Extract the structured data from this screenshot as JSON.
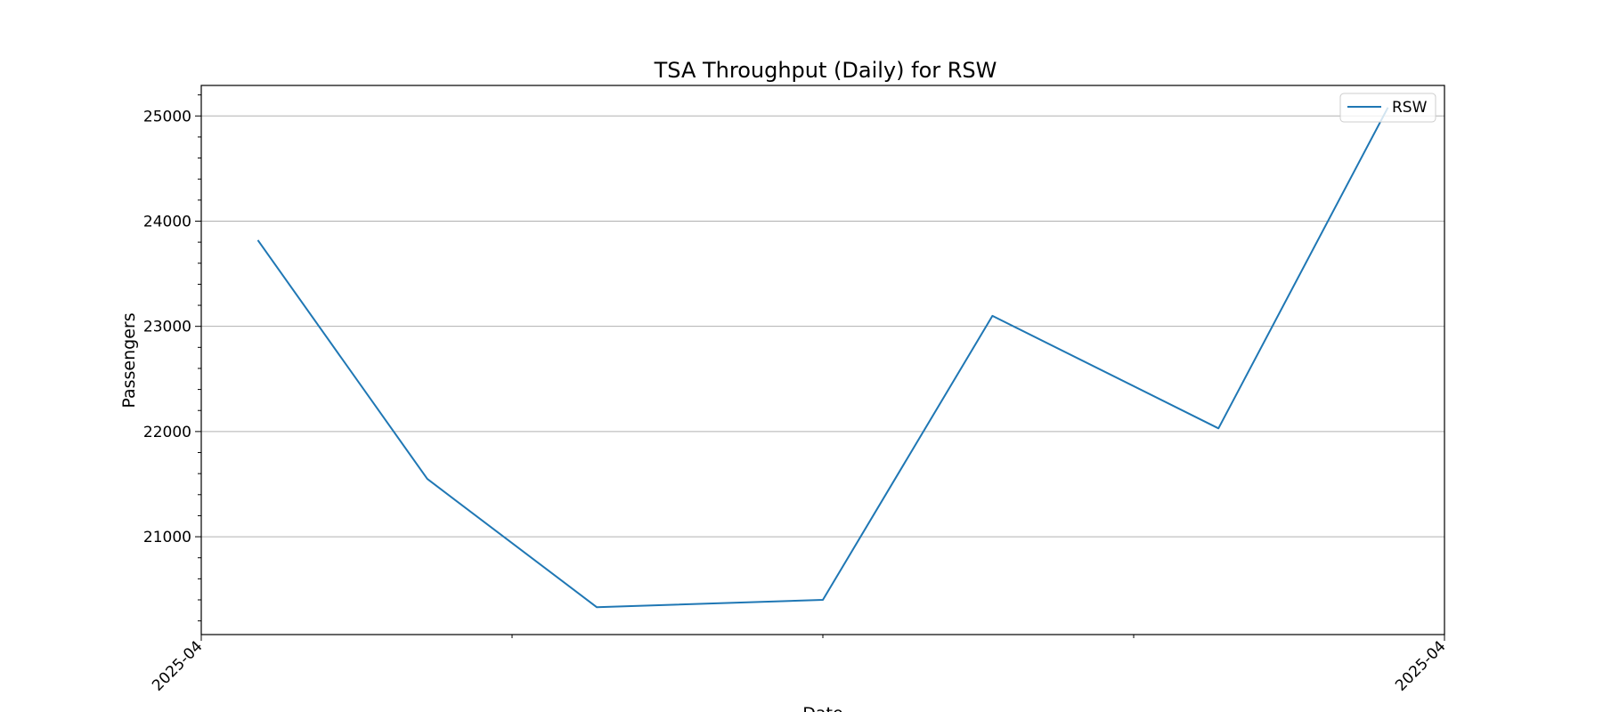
{
  "chart_data": {
    "type": "line",
    "title": "TSA Throughput (Daily) for RSW",
    "xlabel": "Date",
    "ylabel": "Passengers",
    "grid": "y-major",
    "legend_placement": "top-right",
    "xlim": [
      "2025-04-01",
      "2025-04-23"
    ],
    "ylim": [
      20070,
      25290
    ],
    "x_tick_labels": [
      "2025-04",
      "2025-04"
    ],
    "y_ticks": [
      21000,
      22000,
      23000,
      24000,
      25000
    ],
    "series": [
      {
        "name": "RSW",
        "color": "#1f77b4",
        "x": [
          "2025-04-02",
          "2025-04-05",
          "2025-04-08",
          "2025-04-12",
          "2025-04-15",
          "2025-04-19",
          "2025-04-22"
        ],
        "values": [
          23820,
          21550,
          20330,
          20400,
          23100,
          22030,
          25080
        ]
      }
    ]
  }
}
